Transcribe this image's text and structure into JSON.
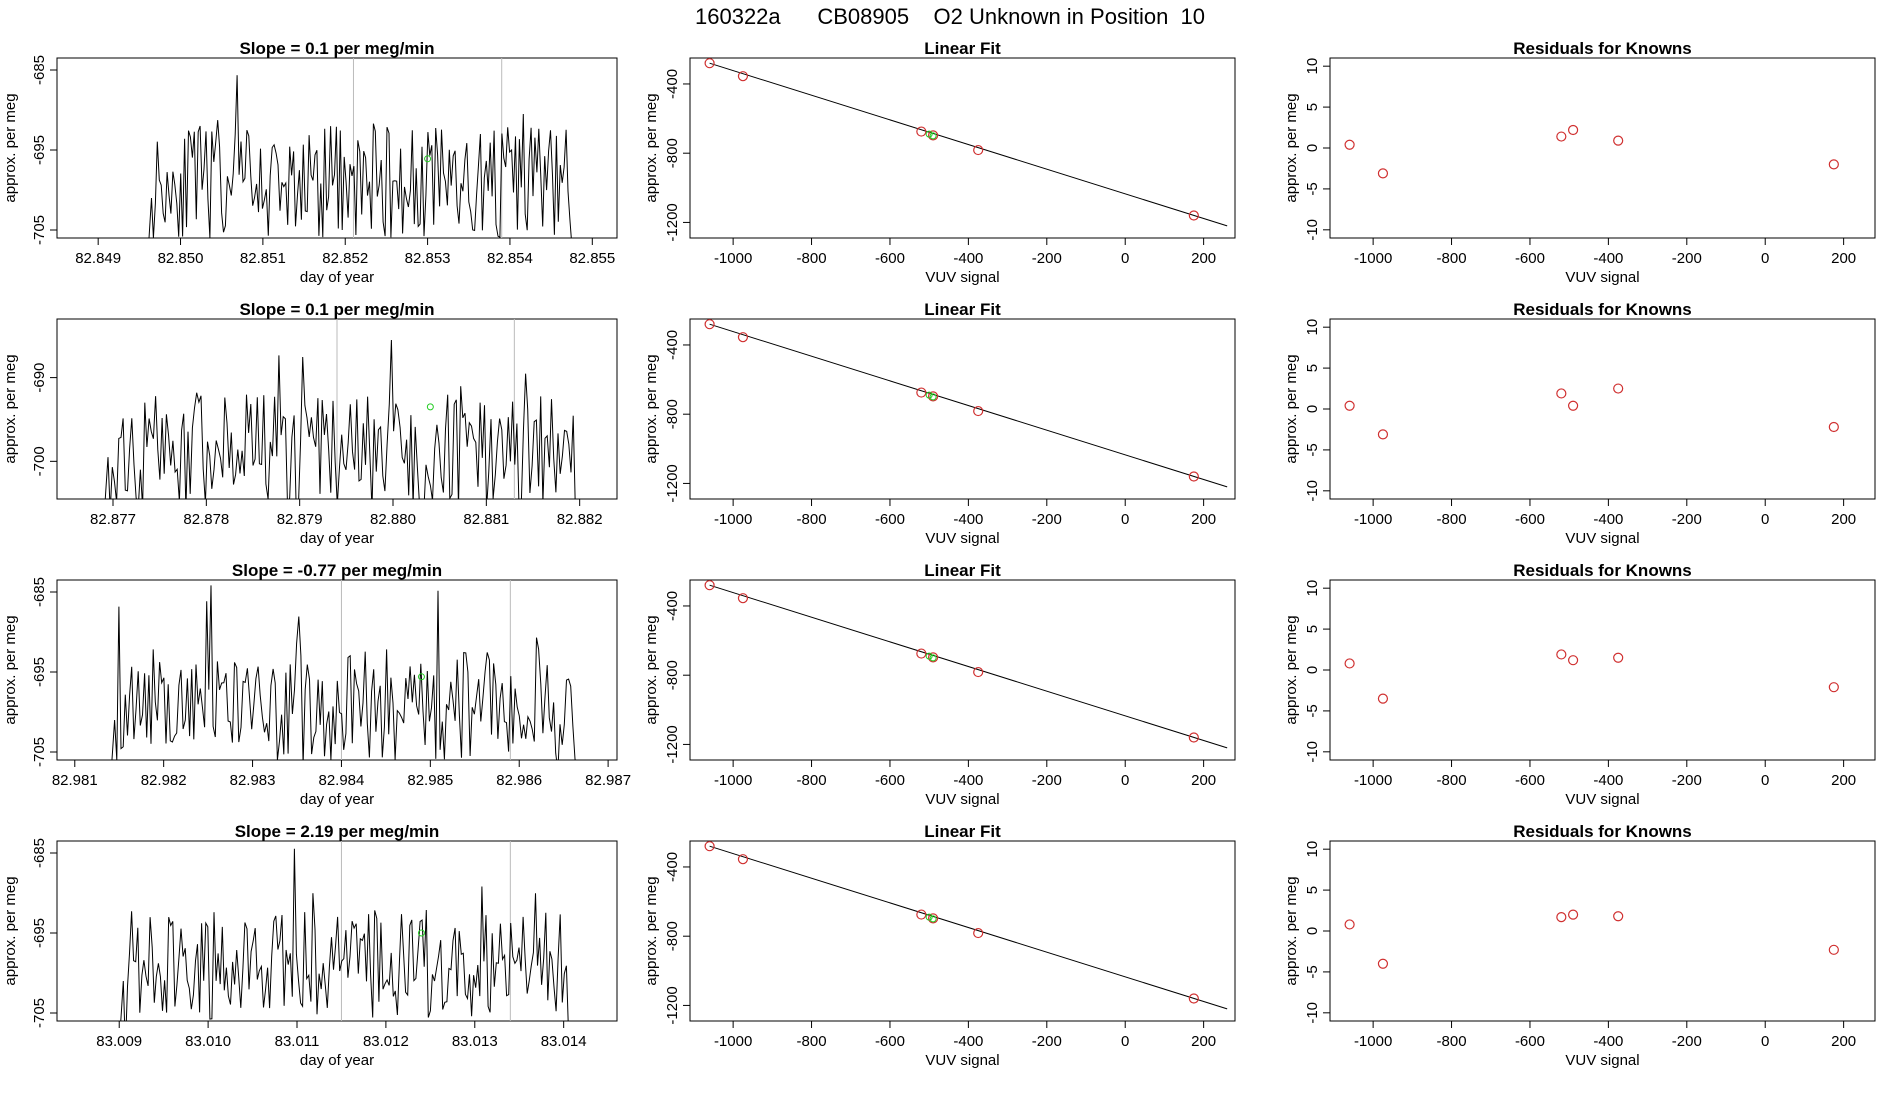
{
  "figure": {
    "title": "160322a      CB08905    O2 Unknown in Position  10"
  },
  "chart_data": [
    {
      "type": "line",
      "title": "Slope =  0.1  per meg/min",
      "xlabel": "day of year",
      "ylabel": "approx. per meg",
      "xlim": [
        82.8485,
        82.8553
      ],
      "ylim": [
        -706,
        -683.5
      ],
      "xticks": [
        "82.849",
        "82.850",
        "82.851",
        "82.852",
        "82.853",
        "82.854",
        "82.855"
      ],
      "yticks": [
        "-705",
        "-695",
        "-685"
      ],
      "vlines": [
        82.8521,
        82.8539
      ],
      "marker": {
        "x": 82.853,
        "y": -696.1,
        "color": "#22cc22"
      },
      "trace_start": 82.8496,
      "trace_end": 82.8548,
      "seed": 11
    },
    {
      "type": "scatter",
      "title": "Linear Fit",
      "xlabel": "VUV signal",
      "ylabel": "approx. per meg",
      "xlim": [
        -1110,
        280
      ],
      "ylim": [
        -1290,
        -250
      ],
      "xticks": [
        "-1000",
        "-800",
        "-600",
        "-400",
        "-200",
        "0",
        "200"
      ],
      "yticks": [
        "-400",
        "-800",
        "-1200"
      ],
      "points": {
        "x": [
          -1060,
          -975,
          -520,
          -490,
          -375,
          175
        ],
        "y": [
          -280,
          -355,
          -675,
          -697,
          -782,
          -1160
        ]
      },
      "fit_line": {
        "x": [
          -1060,
          260
        ],
        "y": [
          -280,
          -1220
        ]
      },
      "unknown": {
        "x": [
          -500,
          -490
        ],
        "y": [
          -690,
          -700
        ]
      }
    },
    {
      "type": "scatter",
      "title": "Residuals for Knowns",
      "xlabel": "VUV signal",
      "ylabel": "approx. per meg",
      "xlim": [
        -1110,
        280
      ],
      "ylim": [
        -11,
        11
      ],
      "xticks": [
        "-1000",
        "-800",
        "-600",
        "-400",
        "-200",
        "0",
        "200"
      ],
      "yticks": [
        "10",
        "5",
        "0",
        "-5",
        "-10"
      ],
      "points": {
        "x": [
          -1060,
          -975,
          -520,
          -490,
          -375,
          175
        ],
        "y": [
          0.4,
          -3.1,
          1.4,
          2.2,
          0.9,
          -2.0
        ]
      }
    },
    {
      "type": "line",
      "title": "Slope =  0.1  per meg/min",
      "xlabel": "day of year",
      "ylabel": "approx. per meg",
      "xlim": [
        82.8764,
        82.8824
      ],
      "ylim": [
        -704.5,
        -683
      ],
      "xticks": [
        "82.877",
        "82.878",
        "82.879",
        "82.880",
        "82.881",
        "82.882"
      ],
      "yticks": [
        "-700",
        "-690"
      ],
      "vlines": [
        82.8794,
        82.8813
      ],
      "marker": {
        "x": 82.8804,
        "y": -693.5,
        "color": "#22cc22"
      },
      "trace_start": 82.8769,
      "trace_end": 82.882,
      "seed": 23
    },
    {
      "type": "scatter",
      "title": "Linear Fit",
      "xlabel": "VUV signal",
      "ylabel": "approx. per meg",
      "xlim": [
        -1110,
        280
      ],
      "ylim": [
        -1290,
        -250
      ],
      "xticks": [
        "-1000",
        "-800",
        "-600",
        "-400",
        "-200",
        "0",
        "200"
      ],
      "yticks": [
        "-400",
        "-800",
        "-1200"
      ],
      "points": {
        "x": [
          -1060,
          -975,
          -520,
          -490,
          -375,
          175
        ],
        "y": [
          -280,
          -355,
          -675,
          -697,
          -782,
          -1160
        ]
      },
      "fit_line": {
        "x": [
          -1060,
          260
        ],
        "y": [
          -280,
          -1220
        ]
      },
      "unknown": {
        "x": [
          -500,
          -490
        ],
        "y": [
          -690,
          -700
        ]
      }
    },
    {
      "type": "scatter",
      "title": "Residuals for Knowns",
      "xlabel": "VUV signal",
      "ylabel": "approx. per meg",
      "xlim": [
        -1110,
        280
      ],
      "ylim": [
        -11,
        11
      ],
      "xticks": [
        "-1000",
        "-800",
        "-600",
        "-400",
        "-200",
        "0",
        "200"
      ],
      "yticks": [
        "10",
        "5",
        "0",
        "-5",
        "-10"
      ],
      "points": {
        "x": [
          -1060,
          -975,
          -520,
          -490,
          -375,
          175
        ],
        "y": [
          0.4,
          -3.1,
          1.9,
          0.4,
          2.5,
          -2.2
        ]
      }
    },
    {
      "type": "line",
      "title": "Slope =  -0.77  per meg/min",
      "xlabel": "day of year",
      "ylabel": "approx. per meg",
      "xlim": [
        82.9808,
        82.9871
      ],
      "ylim": [
        -706,
        -683.5
      ],
      "xticks": [
        "82.981",
        "82.982",
        "82.983",
        "82.984",
        "82.985",
        "82.986",
        "82.987"
      ],
      "yticks": [
        "-705",
        "-695",
        "-685"
      ],
      "vlines": [
        82.984,
        82.9859
      ],
      "marker": {
        "x": 82.9849,
        "y": -695.6,
        "color": "#22cc22"
      },
      "trace_start": 82.9814,
      "trace_end": 82.9867,
      "seed": 37
    },
    {
      "type": "scatter",
      "title": "Linear Fit",
      "xlabel": "VUV signal",
      "ylabel": "approx. per meg",
      "xlim": [
        -1110,
        280
      ],
      "ylim": [
        -1290,
        -250
      ],
      "xticks": [
        "-1000",
        "-800",
        "-600",
        "-400",
        "-200",
        "0",
        "200"
      ],
      "yticks": [
        "-400",
        "-800",
        "-1200"
      ],
      "points": {
        "x": [
          -1060,
          -975,
          -520,
          -490,
          -375,
          175
        ],
        "y": [
          -280,
          -355,
          -675,
          -697,
          -782,
          -1160
        ]
      },
      "fit_line": {
        "x": [
          -1060,
          260
        ],
        "y": [
          -280,
          -1220
        ]
      },
      "unknown": {
        "x": [
          -500,
          -490
        ],
        "y": [
          -690,
          -700
        ]
      }
    },
    {
      "type": "scatter",
      "title": "Residuals for Knowns",
      "xlabel": "VUV signal",
      "ylabel": "approx. per meg",
      "xlim": [
        -1110,
        280
      ],
      "ylim": [
        -11,
        11
      ],
      "xticks": [
        "-1000",
        "-800",
        "-600",
        "-400",
        "-200",
        "0",
        "200"
      ],
      "yticks": [
        "10",
        "5",
        "0",
        "-5",
        "-10"
      ],
      "points": {
        "x": [
          -1060,
          -975,
          -520,
          -490,
          -375,
          175
        ],
        "y": [
          0.8,
          -3.5,
          1.9,
          1.2,
          1.5,
          -2.1
        ]
      }
    },
    {
      "type": "line",
      "title": "Slope =  2.19  per meg/min",
      "xlabel": "day of year",
      "ylabel": "approx. per meg",
      "xlim": [
        83.0083,
        83.0146
      ],
      "ylim": [
        -706,
        -683.5
      ],
      "xticks": [
        "83.009",
        "83.010",
        "83.011",
        "83.012",
        "83.013",
        "83.014"
      ],
      "yticks": [
        "-705",
        "-695",
        "-685"
      ],
      "vlines": [
        83.0115,
        83.0134
      ],
      "marker": {
        "x": 83.0124,
        "y": -695.0,
        "color": "#22cc22"
      },
      "trace_start": 83.009,
      "trace_end": 83.0141,
      "seed": 53
    },
    {
      "type": "scatter",
      "title": "Linear Fit",
      "xlabel": "VUV signal",
      "ylabel": "approx. per meg",
      "xlim": [
        -1110,
        280
      ],
      "ylim": [
        -1290,
        -250
      ],
      "xticks": [
        "-1000",
        "-800",
        "-600",
        "-400",
        "-200",
        "0",
        "200"
      ],
      "yticks": [
        "-400",
        "-800",
        "-1200"
      ],
      "points": {
        "x": [
          -1060,
          -975,
          -520,
          -490,
          -375,
          175
        ],
        "y": [
          -280,
          -355,
          -675,
          -697,
          -782,
          -1160
        ]
      },
      "fit_line": {
        "x": [
          -1060,
          260
        ],
        "y": [
          -280,
          -1220
        ]
      },
      "unknown": {
        "x": [
          -500,
          -490
        ],
        "y": [
          -690,
          -700
        ]
      }
    },
    {
      "type": "scatter",
      "title": "Residuals for Knowns",
      "xlabel": "VUV signal",
      "ylabel": "approx. per meg",
      "xlim": [
        -1110,
        280
      ],
      "ylim": [
        -11,
        11
      ],
      "xticks": [
        "-1000",
        "-800",
        "-600",
        "-400",
        "-200",
        "0",
        "200"
      ],
      "yticks": [
        "10",
        "5",
        "0",
        "-5",
        "-10"
      ],
      "points": {
        "x": [
          -1060,
          -975,
          -520,
          -490,
          -375,
          175
        ],
        "y": [
          0.8,
          -4.0,
          1.7,
          2.0,
          1.8,
          -2.3
        ]
      }
    }
  ]
}
